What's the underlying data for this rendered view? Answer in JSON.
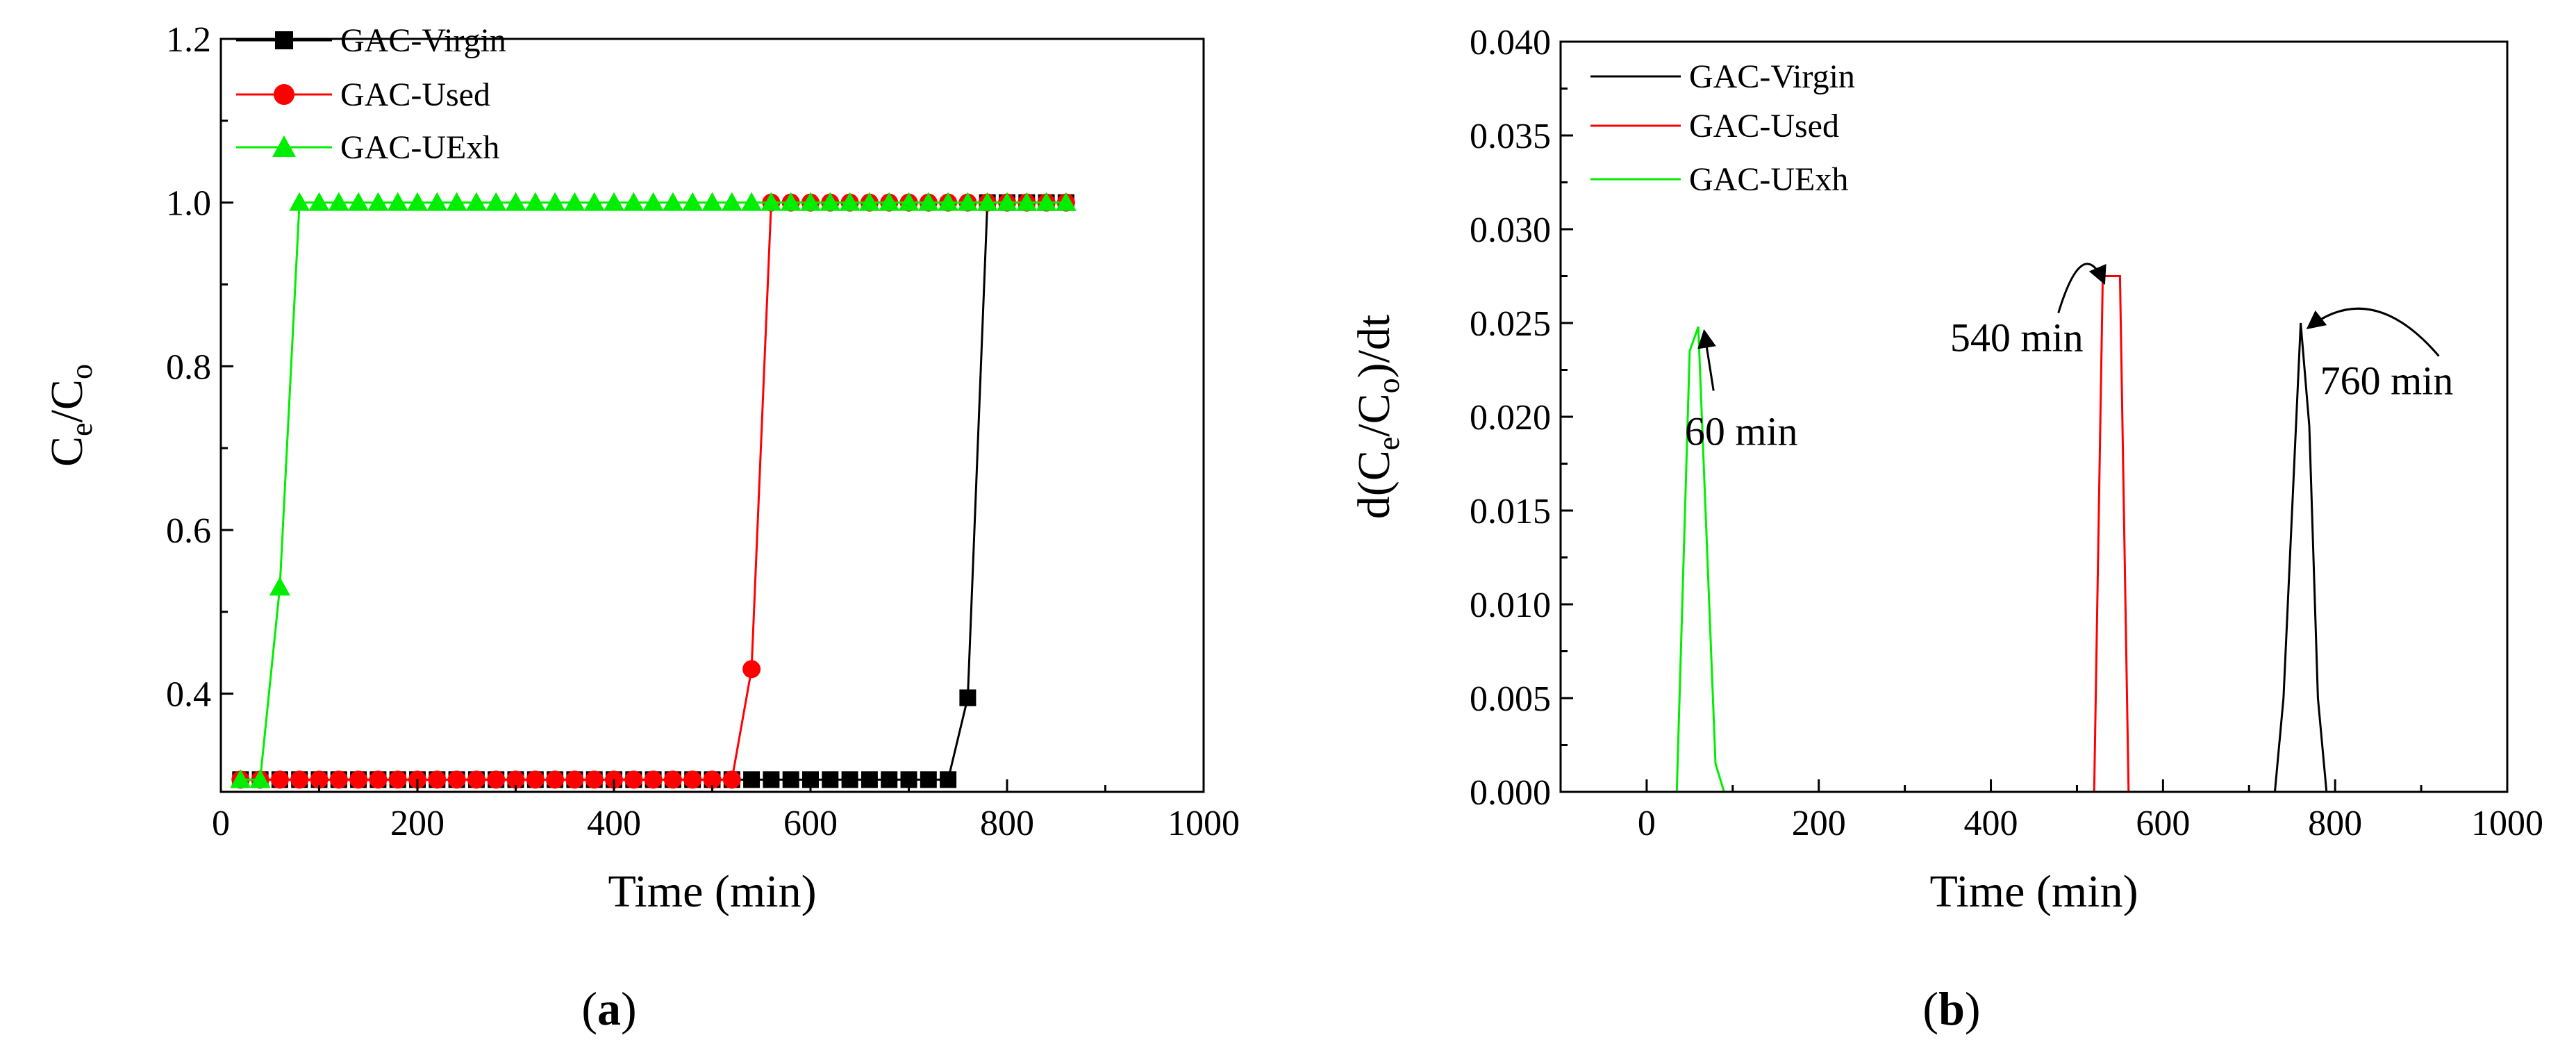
{
  "chart_data": [
    {
      "id": "panel-a",
      "panel_label": "a",
      "type": "line",
      "xlabel": "Time (min)",
      "ylabel_main": "C",
      "ylabel_sub1": "e",
      "ylabel_slash": "/C",
      "ylabel_sub2": "o",
      "xlim": [
        0,
        1000
      ],
      "ylim": [
        0.28,
        1.2
      ],
      "xticks": [
        0,
        200,
        400,
        600,
        800,
        1000
      ],
      "xtick_labels": [
        "0",
        "200",
        "400",
        "600",
        "800",
        "1000"
      ],
      "yticks": [
        0.4,
        0.6,
        0.8,
        1.0,
        1.2
      ],
      "ytick_labels": [
        "0.4",
        "0.6",
        "0.8",
        "1.0",
        "1.2"
      ],
      "legend_position": "top-left",
      "series": [
        {
          "name": "GAC-Virgin",
          "color": "#000000",
          "marker": "square",
          "x": [
            20,
            40,
            60,
            80,
            100,
            120,
            140,
            160,
            180,
            200,
            220,
            240,
            260,
            280,
            300,
            320,
            340,
            360,
            380,
            400,
            420,
            440,
            460,
            480,
            500,
            520,
            540,
            560,
            580,
            600,
            620,
            640,
            660,
            680,
            700,
            720,
            740,
            760,
            780,
            800,
            820,
            840,
            860
          ],
          "y": [
            0.295,
            0.295,
            0.295,
            0.295,
            0.295,
            0.295,
            0.295,
            0.295,
            0.295,
            0.295,
            0.295,
            0.295,
            0.295,
            0.295,
            0.295,
            0.295,
            0.295,
            0.295,
            0.295,
            0.295,
            0.295,
            0.295,
            0.295,
            0.295,
            0.295,
            0.295,
            0.295,
            0.295,
            0.295,
            0.295,
            0.295,
            0.295,
            0.295,
            0.295,
            0.295,
            0.295,
            0.295,
            0.395,
            1.0,
            1.0,
            1.0,
            1.0,
            1.0
          ]
        },
        {
          "name": "GAC-Used",
          "color": "#ff0000",
          "marker": "circle",
          "x": [
            20,
            40,
            60,
            80,
            100,
            120,
            140,
            160,
            180,
            200,
            220,
            240,
            260,
            280,
            300,
            320,
            340,
            360,
            380,
            400,
            420,
            440,
            460,
            480,
            500,
            520,
            540,
            560,
            580,
            600,
            620,
            640,
            660,
            680,
            700,
            720,
            740,
            760,
            780,
            800,
            820,
            840,
            860
          ],
          "y": [
            0.295,
            0.295,
            0.295,
            0.295,
            0.295,
            0.295,
            0.295,
            0.295,
            0.295,
            0.295,
            0.295,
            0.295,
            0.295,
            0.295,
            0.295,
            0.295,
            0.295,
            0.295,
            0.295,
            0.295,
            0.295,
            0.295,
            0.295,
            0.295,
            0.295,
            0.295,
            0.43,
            1.0,
            1.0,
            1.0,
            1.0,
            1.0,
            1.0,
            1.0,
            1.0,
            1.0,
            1.0,
            1.0,
            1.0,
            1.0,
            1.0,
            1.0,
            1.0
          ]
        },
        {
          "name": "GAC-UExh",
          "color": "#00ee00",
          "marker": "triangle",
          "x": [
            20,
            40,
            60,
            80,
            100,
            120,
            140,
            160,
            180,
            200,
            220,
            240,
            260,
            280,
            300,
            320,
            340,
            360,
            380,
            400,
            420,
            440,
            460,
            480,
            500,
            520,
            540,
            560,
            580,
            600,
            620,
            640,
            660,
            680,
            700,
            720,
            740,
            760,
            780,
            800,
            820,
            840,
            860
          ],
          "y": [
            0.295,
            0.295,
            0.53,
            1.0,
            1.0,
            1.0,
            1.0,
            1.0,
            1.0,
            1.0,
            1.0,
            1.0,
            1.0,
            1.0,
            1.0,
            1.0,
            1.0,
            1.0,
            1.0,
            1.0,
            1.0,
            1.0,
            1.0,
            1.0,
            1.0,
            1.0,
            1.0,
            1.0,
            1.0,
            1.0,
            1.0,
            1.0,
            1.0,
            1.0,
            1.0,
            1.0,
            1.0,
            1.0,
            1.0,
            1.0,
            1.0,
            1.0,
            1.0
          ]
        }
      ]
    },
    {
      "id": "panel-b",
      "panel_label": "b",
      "type": "line",
      "xlabel": "Time (min)",
      "ylabel_pre": "d(C",
      "ylabel_sub1": "e",
      "ylabel_mid": "/C",
      "ylabel_sub2": "o",
      "ylabel_post": ")/dt",
      "xlim": [
        -100,
        1000
      ],
      "ylim": [
        0,
        0.04
      ],
      "xticks": [
        0,
        200,
        400,
        600,
        800,
        1000
      ],
      "xtick_labels": [
        "0",
        "200",
        "400",
        "600",
        "800",
        "1000"
      ],
      "yticks": [
        0,
        0.005,
        0.01,
        0.015,
        0.02,
        0.025,
        0.03,
        0.035,
        0.04
      ],
      "ytick_labels": [
        "0.000",
        "0.005",
        "0.010",
        "0.015",
        "0.020",
        "0.025",
        "0.030",
        "0.035",
        "0.040"
      ],
      "legend_position": "top-left",
      "series": [
        {
          "name": "GAC-Virgin",
          "color": "#000000",
          "x": [
            730,
            740,
            760,
            770,
            780,
            790
          ],
          "y": [
            0,
            0.005,
            0.025,
            0.0195,
            0.005,
            0
          ]
        },
        {
          "name": "GAC-Used",
          "color": "#ff0000",
          "x": [
            520,
            530,
            540,
            550,
            560
          ],
          "y": [
            0,
            0.0275,
            0.0275,
            0.0275,
            0
          ]
        },
        {
          "name": "GAC-UExh",
          "color": "#00ee00",
          "x": [
            35,
            50,
            60,
            80,
            90
          ],
          "y": [
            0,
            0.0235,
            0.0248,
            0.0015,
            0
          ]
        }
      ],
      "annotations": [
        {
          "text": "60 min",
          "x": 110,
          "y": 0.0185,
          "target_x": 62,
          "target_y": 0.0248,
          "style": "straight"
        },
        {
          "text": "540 min",
          "x": 430,
          "y": 0.0235,
          "target_x": 535,
          "target_y": 0.0272,
          "style": "curved"
        },
        {
          "text": "760 min",
          "x": 860,
          "y": 0.0212,
          "target_x": 765,
          "target_y": 0.0248,
          "style": "curved"
        }
      ]
    }
  ]
}
